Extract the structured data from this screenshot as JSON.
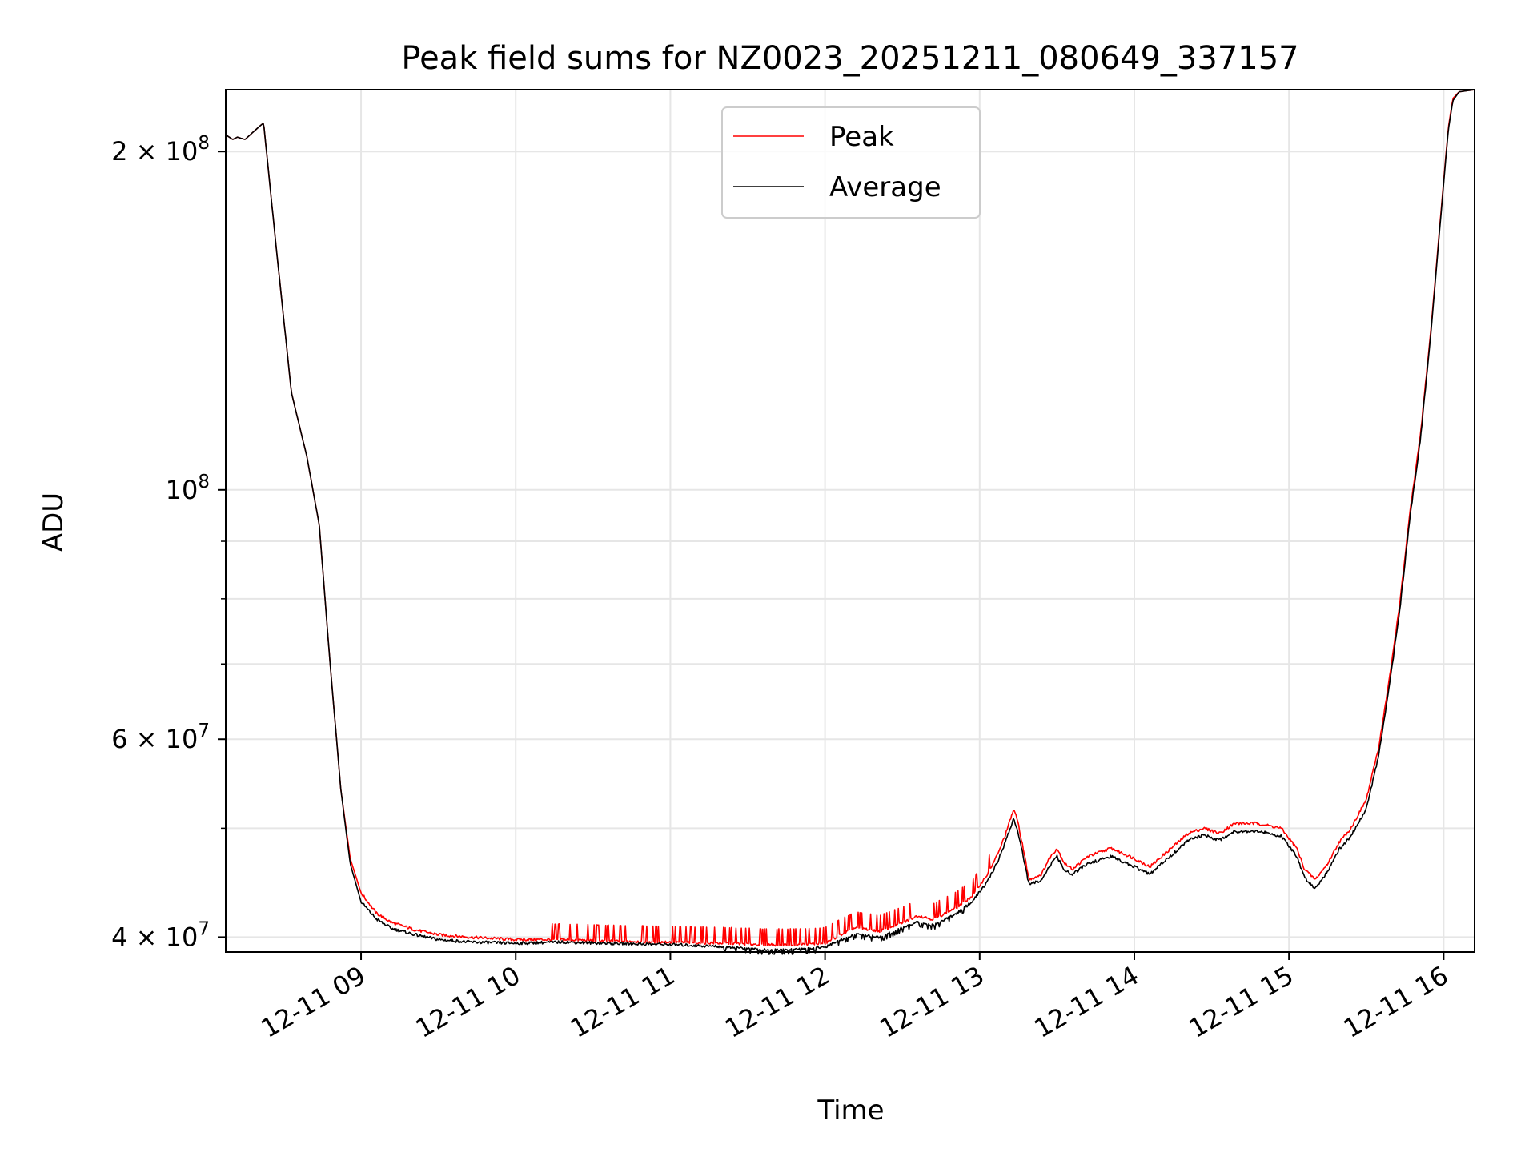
{
  "chart_data": {
    "type": "line",
    "title": "Peak field sums for NZ0023_20251211_080649_337157",
    "xlabel": "Time",
    "ylabel": "ADU",
    "yscale": "log",
    "grid": true,
    "legend_position": "upper-center",
    "xlim_hours": [
      8.125,
      16.2
    ],
    "ylim": [
      38800000,
      227000000
    ],
    "x_ticks": [
      {
        "hour": 9,
        "label": "12-11 09"
      },
      {
        "hour": 10,
        "label": "12-11 10"
      },
      {
        "hour": 11,
        "label": "12-11 11"
      },
      {
        "hour": 12,
        "label": "12-11 12"
      },
      {
        "hour": 13,
        "label": "12-11 13"
      },
      {
        "hour": 14,
        "label": "12-11 14"
      },
      {
        "hour": 15,
        "label": "12-11 15"
      },
      {
        "hour": 16,
        "label": "12-11 16"
      }
    ],
    "y_major_ticks": [
      {
        "value": 40000000,
        "mant": "4",
        "exp": "7"
      },
      {
        "value": 60000000,
        "mant": "6",
        "exp": "7"
      },
      {
        "value": 100000000,
        "mant": "",
        "exp": "8"
      },
      {
        "value": 200000000,
        "mant": "2",
        "exp": "8"
      }
    ],
    "y_minor_ticks": [
      50000000,
      70000000,
      80000000,
      90000000
    ],
    "series": [
      {
        "name": "Peak",
        "color": "#ff0000",
        "points": [
          [
            8.125,
            207000000.0
          ],
          [
            8.17,
            205000000.0
          ],
          [
            8.2,
            206000000.0
          ],
          [
            8.25,
            205000000.0
          ],
          [
            8.3,
            208000000.0
          ],
          [
            8.35,
            211000000.0
          ],
          [
            8.37,
            212000000.0
          ],
          [
            8.45,
            165000000.0
          ],
          [
            8.55,
            122000000.0
          ],
          [
            8.65,
            107000000.0
          ],
          [
            8.73,
            93000000.0
          ],
          [
            8.8,
            70000000.0
          ],
          [
            8.87,
            54000000.0
          ],
          [
            8.93,
            47000000.0
          ],
          [
            9.0,
            43800000.0
          ],
          [
            9.1,
            42000000.0
          ],
          [
            9.2,
            41200000.0
          ],
          [
            9.35,
            40600000.0
          ],
          [
            9.5,
            40200000.0
          ],
          [
            9.7,
            40000000.0
          ],
          [
            10.0,
            39800000.0
          ],
          [
            10.3,
            39800000.0
          ],
          [
            10.6,
            39700000.0
          ],
          [
            11.0,
            39600000.0
          ],
          [
            11.4,
            39500000.0
          ],
          [
            11.6,
            39400000.0
          ],
          [
            11.8,
            39400000.0
          ],
          [
            12.0,
            39500000.0
          ],
          [
            12.1,
            40200000.0
          ],
          [
            12.2,
            40800000.0
          ],
          [
            12.35,
            40500000.0
          ],
          [
            12.5,
            41200000.0
          ],
          [
            12.6,
            41800000.0
          ],
          [
            12.7,
            41500000.0
          ],
          [
            12.85,
            42500000.0
          ],
          [
            12.95,
            43500000.0
          ],
          [
            13.05,
            45500000.0
          ],
          [
            13.12,
            47500000.0
          ],
          [
            13.17,
            49500000.0
          ],
          [
            13.22,
            52000000.0
          ],
          [
            13.25,
            50500000.0
          ],
          [
            13.32,
            45000000.0
          ],
          [
            13.4,
            45500000.0
          ],
          [
            13.45,
            47000000.0
          ],
          [
            13.5,
            48000000.0
          ],
          [
            13.55,
            46500000.0
          ],
          [
            13.6,
            46000000.0
          ],
          [
            13.7,
            47200000.0
          ],
          [
            13.85,
            48000000.0
          ],
          [
            14.0,
            47000000.0
          ],
          [
            14.1,
            46200000.0
          ],
          [
            14.2,
            47500000.0
          ],
          [
            14.35,
            49500000.0
          ],
          [
            14.45,
            50000000.0
          ],
          [
            14.55,
            49500000.0
          ],
          [
            14.65,
            50500000.0
          ],
          [
            14.8,
            50500000.0
          ],
          [
            14.95,
            50000000.0
          ],
          [
            15.05,
            48000000.0
          ],
          [
            15.1,
            46000000.0
          ],
          [
            15.17,
            45000000.0
          ],
          [
            15.25,
            46500000.0
          ],
          [
            15.32,
            48500000.0
          ],
          [
            15.4,
            50000000.0
          ],
          [
            15.5,
            53000000.0
          ],
          [
            15.58,
            59000000.0
          ],
          [
            15.65,
            68000000.0
          ],
          [
            15.72,
            80000000.0
          ],
          [
            15.78,
            95000000.0
          ],
          [
            15.85,
            112000000.0
          ],
          [
            15.92,
            140000000.0
          ],
          [
            15.98,
            175000000.0
          ],
          [
            16.03,
            210000000.0
          ],
          [
            16.06,
            223000000.0
          ],
          [
            16.1,
            226000000.0
          ],
          [
            16.2,
            227000000.0
          ]
        ]
      },
      {
        "name": "Average",
        "color": "#000000",
        "points": [
          [
            8.125,
            207000000.0
          ],
          [
            8.17,
            205000000.0
          ],
          [
            8.2,
            206000000.0
          ],
          [
            8.25,
            205000000.0
          ],
          [
            8.3,
            208000000.0
          ],
          [
            8.35,
            211000000.0
          ],
          [
            8.37,
            212000000.0
          ],
          [
            8.45,
            165000000.0
          ],
          [
            8.55,
            122000000.0
          ],
          [
            8.65,
            107000000.0
          ],
          [
            8.73,
            93000000.0
          ],
          [
            8.8,
            70000000.0
          ],
          [
            8.87,
            54000000.0
          ],
          [
            8.93,
            46500000.0
          ],
          [
            9.0,
            43000000.0
          ],
          [
            9.1,
            41500000.0
          ],
          [
            9.2,
            40700000.0
          ],
          [
            9.35,
            40200000.0
          ],
          [
            9.5,
            39800000.0
          ],
          [
            9.7,
            39600000.0
          ],
          [
            10.0,
            39500000.0
          ],
          [
            10.3,
            39600000.0
          ],
          [
            10.6,
            39500000.0
          ],
          [
            11.0,
            39400000.0
          ],
          [
            11.4,
            39200000.0
          ],
          [
            11.6,
            39000000.0
          ],
          [
            11.8,
            39000000.0
          ],
          [
            12.0,
            39200000.0
          ],
          [
            12.1,
            39800000.0
          ],
          [
            12.2,
            40300000.0
          ],
          [
            12.35,
            40000000.0
          ],
          [
            12.5,
            40800000.0
          ],
          [
            12.6,
            41300000.0
          ],
          [
            12.7,
            41000000.0
          ],
          [
            12.85,
            42000000.0
          ],
          [
            12.95,
            43000000.0
          ],
          [
            13.05,
            44800000.0
          ],
          [
            13.12,
            46800000.0
          ],
          [
            13.17,
            48800000.0
          ],
          [
            13.22,
            51000000.0
          ],
          [
            13.25,
            49500000.0
          ],
          [
            13.32,
            44500000.0
          ],
          [
            13.4,
            45000000.0
          ],
          [
            13.45,
            46200000.0
          ],
          [
            13.5,
            47200000.0
          ],
          [
            13.55,
            45800000.0
          ],
          [
            13.6,
            45500000.0
          ],
          [
            13.7,
            46500000.0
          ],
          [
            13.85,
            47200000.0
          ],
          [
            14.0,
            46200000.0
          ],
          [
            14.1,
            45500000.0
          ],
          [
            14.2,
            46800000.0
          ],
          [
            14.35,
            48800000.0
          ],
          [
            14.45,
            49300000.0
          ],
          [
            14.55,
            48800000.0
          ],
          [
            14.65,
            49700000.0
          ],
          [
            14.8,
            49700000.0
          ],
          [
            14.95,
            49200000.0
          ],
          [
            15.05,
            47200000.0
          ],
          [
            15.1,
            45200000.0
          ],
          [
            15.17,
            44200000.0
          ],
          [
            15.25,
            45800000.0
          ],
          [
            15.32,
            47800000.0
          ],
          [
            15.4,
            49200000.0
          ],
          [
            15.5,
            52000000.0
          ],
          [
            15.58,
            58000000.0
          ],
          [
            15.65,
            67000000.0
          ],
          [
            15.72,
            79000000.0
          ],
          [
            15.78,
            94000000.0
          ],
          [
            15.85,
            111000000.0
          ],
          [
            15.92,
            139000000.0
          ],
          [
            15.98,
            174000000.0
          ],
          [
            16.03,
            209000000.0
          ],
          [
            16.06,
            222000000.0
          ],
          [
            16.1,
            226000000.0
          ],
          [
            16.2,
            227000000.0
          ]
        ]
      }
    ]
  }
}
